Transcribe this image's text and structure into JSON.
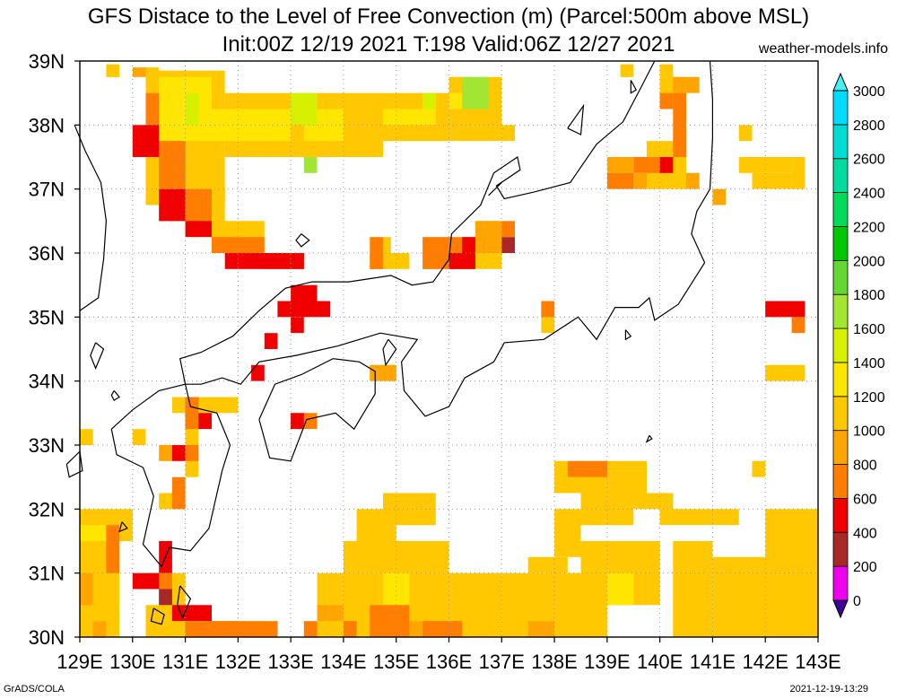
{
  "title_line1": "GFS Distace to the Level of Free Convection (m) (Parcel:500m above MSL)",
  "title_line2": "Init:00Z 12/19 2021 T:198 Valid:06Z 12/27 2021",
  "site": "weather-models.info",
  "footer_left": "GrADS/COLA",
  "footer_right": "2021-12-19-13:29",
  "colors": {
    "coast": "#000000",
    "grid": "#9a9a9a",
    "frame": "#000000"
  },
  "chart_data": {
    "type": "heatmap",
    "x_axis": {
      "range": [
        129,
        143
      ],
      "ticks": [
        129,
        130,
        131,
        132,
        133,
        134,
        135,
        136,
        137,
        138,
        139,
        140,
        141,
        142,
        143
      ],
      "tick_labels": [
        "129E",
        "130E",
        "131E",
        "132E",
        "133E",
        "134E",
        "135E",
        "136E",
        "137E",
        "138E",
        "139E",
        "140E",
        "141E",
        "142E",
        "143E"
      ]
    },
    "y_axis": {
      "range": [
        30,
        39
      ],
      "ticks": [
        30,
        31,
        32,
        33,
        34,
        35,
        36,
        37,
        38,
        39
      ],
      "tick_labels": [
        "30N",
        "31N",
        "32N",
        "33N",
        "34N",
        "35N",
        "36N",
        "37N",
        "38N",
        "39N"
      ]
    },
    "grid": true,
    "grid_resolution_deg": 0.25,
    "colorbar": {
      "position": "right",
      "levels": [
        0,
        200,
        400,
        600,
        800,
        1000,
        1200,
        1400,
        1600,
        1800,
        2000,
        2200,
        2400,
        2600,
        2800,
        3000
      ],
      "labels": [
        "0",
        "200",
        "400",
        "600",
        "800",
        "1000",
        "1200",
        "1400",
        "1600",
        "1800",
        "2000",
        "2200",
        "2400",
        "2600",
        "2800",
        "3000"
      ],
      "colors": [
        "#3c0096",
        "#ee00ee",
        "#a82828",
        "#f00000",
        "#ff7d00",
        "#ffa500",
        "#ffc800",
        "#ffe600",
        "#d7f000",
        "#a0e632",
        "#64d732",
        "#00c800",
        "#00dc5a",
        "#00dca0",
        "#00dcd2",
        "#00dcff",
        "#46f0f0"
      ],
      "under_color": "#3c0096",
      "over_color": "#46f0f0"
    },
    "regions": [
      {
        "value": 1000,
        "rects": [
          [
            130.25,
            36.75,
            131.75,
            38.85
          ],
          [
            131.75,
            37.5,
            134.75,
            38.5
          ],
          [
            134.75,
            37.75,
            136.0,
            38.5
          ],
          [
            136.0,
            37.75,
            137.0,
            38.75
          ],
          [
            137.0,
            37.75,
            137.25,
            38.0
          ],
          [
            131.0,
            36.25,
            131.75,
            37.0
          ],
          [
            131.5,
            36.0,
            132.5,
            36.5
          ],
          [
            129.5,
            38.75,
            129.75,
            38.95
          ],
          [
            130.25,
            38.0,
            130.5,
            38.9
          ],
          [
            134.5,
            35.75,
            135.25,
            36.0
          ],
          [
            136.5,
            35.75,
            137.0,
            36.5
          ],
          [
            134.75,
            36.0,
            134.9,
            36.25
          ],
          [
            137.75,
            34.75,
            138.0,
            35.0
          ],
          [
            139.75,
            37.0,
            140.5,
            37.75
          ],
          [
            140.0,
            38.25,
            140.5,
            38.75
          ],
          [
            139.25,
            38.75,
            139.5,
            38.95
          ],
          [
            140.0,
            38.75,
            140.25,
            38.95
          ],
          [
            141.75,
            37.0,
            142.5,
            37.25
          ],
          [
            141.5,
            37.75,
            141.75,
            38.0
          ],
          [
            142.5,
            37.0,
            142.75,
            37.5
          ],
          [
            141.5,
            37.25,
            142.5,
            37.5
          ],
          [
            142.0,
            35.0,
            142.75,
            35.25
          ],
          [
            142.0,
            34.0,
            142.75,
            34.25
          ],
          [
            134.5,
            34.0,
            135.0,
            34.25
          ],
          [
            130.75,
            33.5,
            132.0,
            33.75
          ],
          [
            129.0,
            33.0,
            129.25,
            33.25
          ],
          [
            130.0,
            33.0,
            130.25,
            33.25
          ],
          [
            131.0,
            32.5,
            131.25,
            33.25
          ],
          [
            130.5,
            32.0,
            131.0,
            32.25
          ],
          [
            129.0,
            30.0,
            129.75,
            32.0
          ],
          [
            129.75,
            31.5,
            130.0,
            32.0
          ],
          [
            129.25,
            30.5,
            129.75,
            31.0
          ],
          [
            130.25,
            30.0,
            131.0,
            30.5
          ],
          [
            130.5,
            30.5,
            131.0,
            31.0
          ],
          [
            131.5,
            30.0,
            132.5,
            30.25
          ],
          [
            133.5,
            30.0,
            137.0,
            31.0
          ],
          [
            134.0,
            31.0,
            136.0,
            31.5
          ],
          [
            134.25,
            31.5,
            135.0,
            32.0
          ],
          [
            134.75,
            31.75,
            135.75,
            32.25
          ],
          [
            137.0,
            30.0,
            139.0,
            31.0
          ],
          [
            137.5,
            31.0,
            138.25,
            31.25
          ],
          [
            138.0,
            31.25,
            138.5,
            32.0
          ],
          [
            138.5,
            30.5,
            140.0,
            31.5
          ],
          [
            140.25,
            30.0,
            141.0,
            31.5
          ],
          [
            141.0,
            30.0,
            143.0,
            31.25
          ],
          [
            142.0,
            31.0,
            143.0,
            32.0
          ],
          [
            138.5,
            31.75,
            139.5,
            32.5
          ],
          [
            138.0,
            32.25,
            139.75,
            32.75
          ],
          [
            139.5,
            32.0,
            140.25,
            32.25
          ],
          [
            140.0,
            31.75,
            141.5,
            32.0
          ],
          [
            141.75,
            32.5,
            142.0,
            32.75
          ]
        ]
      },
      {
        "value": 1200,
        "rects": [
          [
            130.5,
            37.75,
            131.5,
            38.75
          ],
          [
            131.5,
            37.75,
            133.0,
            38.25
          ],
          [
            133.25,
            37.75,
            134.0,
            38.25
          ],
          [
            134.75,
            38.0,
            135.75,
            38.25
          ],
          [
            136.0,
            38.25,
            136.5,
            38.5
          ],
          [
            129.0,
            31.5,
            129.5,
            31.75
          ],
          [
            134.75,
            30.5,
            135.25,
            31.0
          ],
          [
            139.0,
            30.5,
            139.5,
            31.0
          ]
        ]
      },
      {
        "value": 1400,
        "rects": [
          [
            131.0,
            38.0,
            131.25,
            38.5
          ],
          [
            133.0,
            38.0,
            133.5,
            38.5
          ],
          [
            135.5,
            38.25,
            135.75,
            38.5
          ]
        ]
      },
      {
        "value": 1600,
        "rects": [
          [
            136.25,
            38.25,
            136.75,
            38.75
          ],
          [
            133.25,
            37.25,
            133.5,
            37.5
          ]
        ]
      },
      {
        "value": 800,
        "rects": [
          [
            130.0,
            38.75,
            130.25,
            38.9
          ],
          [
            136.5,
            36.0,
            137.0,
            36.5
          ],
          [
            137.75,
            35.0,
            138.0,
            35.25
          ],
          [
            139.5,
            37.0,
            139.75,
            37.25
          ],
          [
            140.5,
            37.0,
            140.75,
            37.25
          ],
          [
            139.0,
            37.25,
            139.5,
            37.5
          ],
          [
            140.25,
            38.5,
            140.75,
            38.75
          ],
          [
            141.0,
            36.75,
            141.25,
            37.0
          ],
          [
            131.0,
            33.25,
            131.25,
            33.5
          ],
          [
            134.5,
            34.0,
            135.0,
            34.25
          ],
          [
            130.5,
            32.75,
            130.75,
            33.0
          ],
          [
            129.0,
            30.5,
            129.25,
            31.0
          ],
          [
            129.25,
            30.0,
            129.5,
            30.25
          ],
          [
            131.5,
            30.0,
            132.0,
            30.25
          ],
          [
            133.5,
            30.25,
            134.0,
            30.5
          ],
          [
            135.0,
            30.0,
            135.5,
            30.25
          ],
          [
            137.5,
            30.0,
            138.0,
            30.25
          ]
        ]
      },
      {
        "value": 600,
        "rects": [
          [
            130.25,
            37.75,
            130.5,
            38.5
          ],
          [
            130.5,
            37.0,
            131.0,
            37.75
          ],
          [
            131.0,
            36.5,
            131.5,
            37.0
          ],
          [
            131.5,
            36.0,
            132.5,
            36.25
          ],
          [
            132.5,
            35.75,
            133.25,
            36.0
          ],
          [
            134.5,
            35.75,
            134.75,
            36.25
          ],
          [
            135.5,
            35.75,
            136.5,
            36.25
          ],
          [
            137.0,
            36.25,
            137.25,
            36.5
          ],
          [
            137.75,
            35.0,
            138.0,
            35.25
          ],
          [
            140.0,
            38.25,
            140.25,
            38.5
          ],
          [
            140.25,
            37.5,
            140.5,
            38.5
          ],
          [
            139.5,
            37.25,
            140.25,
            37.5
          ],
          [
            139.0,
            37.0,
            139.5,
            37.25
          ],
          [
            142.5,
            35.0,
            142.75,
            35.25
          ],
          [
            131.0,
            33.25,
            131.25,
            33.75
          ],
          [
            133.0,
            33.25,
            133.5,
            33.5
          ],
          [
            131.0,
            32.75,
            131.25,
            33.0
          ],
          [
            130.75,
            32.0,
            131.0,
            32.5
          ],
          [
            129.5,
            31.0,
            129.75,
            31.75
          ],
          [
            130.25,
            30.75,
            130.75,
            31.0
          ],
          [
            131.0,
            30.0,
            132.75,
            30.25
          ],
          [
            133.25,
            30.0,
            133.5,
            30.25
          ],
          [
            134.0,
            30.0,
            134.25,
            30.25
          ],
          [
            134.5,
            30.0,
            135.25,
            30.5
          ],
          [
            135.5,
            30.0,
            136.25,
            30.25
          ],
          [
            138.25,
            32.5,
            139.0,
            32.75
          ],
          [
            142.5,
            34.75,
            142.75,
            35.0
          ]
        ]
      },
      {
        "value": 400,
        "rects": [
          [
            130.0,
            37.5,
            130.5,
            38.0
          ],
          [
            130.5,
            36.5,
            131.0,
            37.0
          ],
          [
            131.0,
            36.25,
            131.5,
            36.5
          ],
          [
            131.75,
            35.75,
            133.25,
            36.0
          ],
          [
            133.0,
            35.25,
            133.5,
            35.5
          ],
          [
            133.5,
            35.0,
            133.75,
            35.25
          ],
          [
            132.75,
            35.0,
            133.5,
            35.25
          ],
          [
            133.0,
            34.75,
            133.25,
            35.0
          ],
          [
            132.5,
            34.5,
            132.75,
            34.75
          ],
          [
            132.25,
            34.0,
            132.5,
            34.25
          ],
          [
            131.25,
            33.25,
            131.5,
            33.5
          ],
          [
            130.75,
            32.75,
            131.0,
            33.0
          ],
          [
            130.5,
            31.0,
            130.75,
            31.5
          ],
          [
            130.75,
            30.25,
            131.5,
            30.5
          ],
          [
            130.0,
            30.75,
            130.5,
            31.0
          ],
          [
            136.0,
            35.75,
            136.5,
            36.0
          ],
          [
            136.25,
            36.0,
            136.5,
            36.25
          ],
          [
            140.0,
            37.25,
            140.25,
            37.5
          ],
          [
            142.0,
            35.0,
            142.75,
            35.25
          ],
          [
            133.0,
            33.25,
            133.25,
            33.5
          ]
        ]
      },
      {
        "value": 200,
        "rects": [
          [
            130.5,
            30.5,
            130.75,
            30.75
          ],
          [
            137.0,
            36.0,
            137.25,
            36.25
          ]
        ]
      }
    ]
  }
}
